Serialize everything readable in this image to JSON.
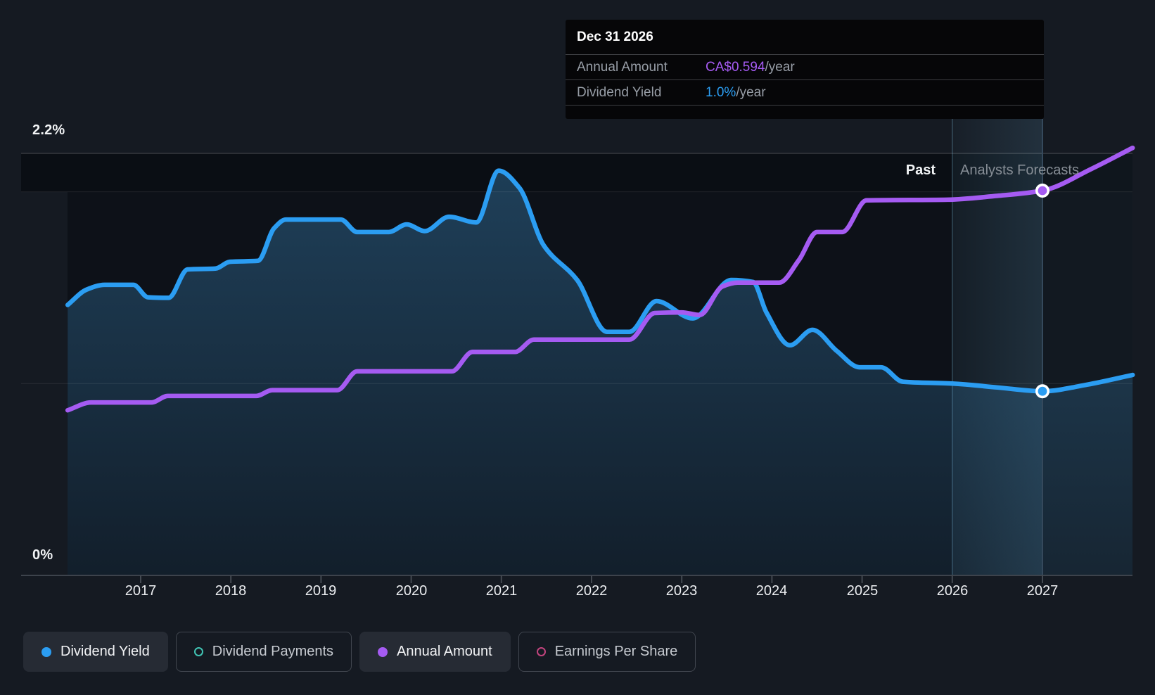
{
  "accent_colors": {
    "yield_blue": "#2b9df2",
    "amount_purple": "#a55bf2",
    "payments_teal": "#41c4b4",
    "eps_pink": "#c2447e",
    "background": "#151a22",
    "tooltip_background": "#060608"
  },
  "tooltip": {
    "title": "Dec 31 2026",
    "rows": [
      {
        "label": "Annual Amount",
        "value": "CA$0.594",
        "suffix": "/year",
        "value_color": "#a55bf2"
      },
      {
        "label": "Dividend Yield",
        "value": "1.0%",
        "suffix": "/year",
        "value_color": "#2b9df2"
      }
    ]
  },
  "chart": {
    "y_top_label": "2.2%",
    "y_bottom_label": "0%",
    "past_label": "Past",
    "forecast_label": "Analysts Forecasts",
    "x_ticks": [
      "2017",
      "2018",
      "2019",
      "2020",
      "2021",
      "2022",
      "2023",
      "2024",
      "2025",
      "2026",
      "2027"
    ]
  },
  "chart_data": {
    "type": "line",
    "title": "Dividend history and forecast",
    "x_axis": {
      "ticks": [
        2017,
        2018,
        2019,
        2020,
        2021,
        2022,
        2023,
        2024,
        2025,
        2026,
        2027
      ],
      "range": [
        2016.19,
        2028.0
      ]
    },
    "y_axes": [
      {
        "name": "Dividend Yield",
        "unit": "%",
        "range": [
          0,
          2.2
        ],
        "gridlines": [
          2.2,
          2.0,
          1.0,
          0
        ],
        "labeled_ticks": [
          "2.2%",
          "0%"
        ]
      },
      {
        "name": "Annual Amount",
        "unit": "CA$/year",
        "range": [
          0,
          0.66
        ],
        "visible_axis": false
      }
    ],
    "past_until": 2026,
    "legend_position": "bottom",
    "grid": "horizontal-only",
    "hover": {
      "x": 2027,
      "date": "Dec 31 2026",
      "annual_amount": "CA$0.594/year",
      "dividend_yield": "1.0%/year"
    },
    "series": [
      {
        "name": "Dividend Yield",
        "type": "area",
        "unit": "%",
        "color": "#2b9df2",
        "points": [
          [
            2016.19,
            1.41
          ],
          [
            2016.4,
            1.49
          ],
          [
            2016.6,
            1.515
          ],
          [
            2016.92,
            1.515
          ],
          [
            2017.08,
            1.45
          ],
          [
            2017.31,
            1.447
          ],
          [
            2017.52,
            1.595
          ],
          [
            2017.83,
            1.6
          ],
          [
            2017.99,
            1.635
          ],
          [
            2018.3,
            1.64
          ],
          [
            2018.48,
            1.81
          ],
          [
            2018.61,
            1.855
          ],
          [
            2019.22,
            1.855
          ],
          [
            2019.4,
            1.79
          ],
          [
            2019.75,
            1.79
          ],
          [
            2019.95,
            1.83
          ],
          [
            2020.15,
            1.795
          ],
          [
            2020.42,
            1.87
          ],
          [
            2020.72,
            1.84
          ],
          [
            2020.97,
            2.11
          ],
          [
            2021.2,
            2.02
          ],
          [
            2021.47,
            1.72
          ],
          [
            2021.84,
            1.54
          ],
          [
            2022.17,
            1.27
          ],
          [
            2022.42,
            1.27
          ],
          [
            2022.72,
            1.43
          ],
          [
            2023.12,
            1.34
          ],
          [
            2023.55,
            1.54
          ],
          [
            2023.79,
            1.53
          ],
          [
            2023.94,
            1.37
          ],
          [
            2024.2,
            1.2
          ],
          [
            2024.45,
            1.28
          ],
          [
            2024.72,
            1.17
          ],
          [
            2024.97,
            1.085
          ],
          [
            2025.21,
            1.085
          ],
          [
            2025.45,
            1.01
          ],
          [
            2026.0,
            1.0
          ],
          [
            2026.5,
            0.98
          ],
          [
            2027.0,
            0.96
          ],
          [
            2027.5,
            0.995
          ],
          [
            2028.0,
            1.045
          ]
        ]
      },
      {
        "name": "Annual Amount",
        "type": "line",
        "unit": "CA$/year",
        "color": "#a55bf2",
        "points": [
          [
            2016.19,
            0.255
          ],
          [
            2016.45,
            0.267
          ],
          [
            2017.12,
            0.267
          ],
          [
            2017.3,
            0.277
          ],
          [
            2018.28,
            0.277
          ],
          [
            2018.46,
            0.286
          ],
          [
            2019.18,
            0.286
          ],
          [
            2019.4,
            0.315
          ],
          [
            2020.45,
            0.315
          ],
          [
            2020.68,
            0.345
          ],
          [
            2021.15,
            0.345
          ],
          [
            2021.36,
            0.364
          ],
          [
            2022.42,
            0.364
          ],
          [
            2022.7,
            0.405
          ],
          [
            2023.0,
            0.406
          ],
          [
            2023.2,
            0.402
          ],
          [
            2023.45,
            0.446
          ],
          [
            2023.62,
            0.452
          ],
          [
            2024.08,
            0.452
          ],
          [
            2024.3,
            0.487
          ],
          [
            2024.5,
            0.53
          ],
          [
            2024.78,
            0.53
          ],
          [
            2025.05,
            0.579
          ],
          [
            2025.95,
            0.58
          ],
          [
            2026.5,
            0.586
          ],
          [
            2027.0,
            0.594
          ],
          [
            2027.55,
            0.628
          ],
          [
            2028.0,
            0.66
          ]
        ]
      }
    ]
  },
  "legend": {
    "items": [
      {
        "label": "Dividend Yield",
        "color": "#2b9df2",
        "marker": "filled",
        "active": true
      },
      {
        "label": "Dividend Payments",
        "color": "#41c4b4",
        "marker": "ring",
        "active": false
      },
      {
        "label": "Annual Amount",
        "color": "#a55bf2",
        "marker": "filled",
        "active": true
      },
      {
        "label": "Earnings Per Share",
        "color": "#c2447e",
        "marker": "ring",
        "active": false
      }
    ]
  }
}
